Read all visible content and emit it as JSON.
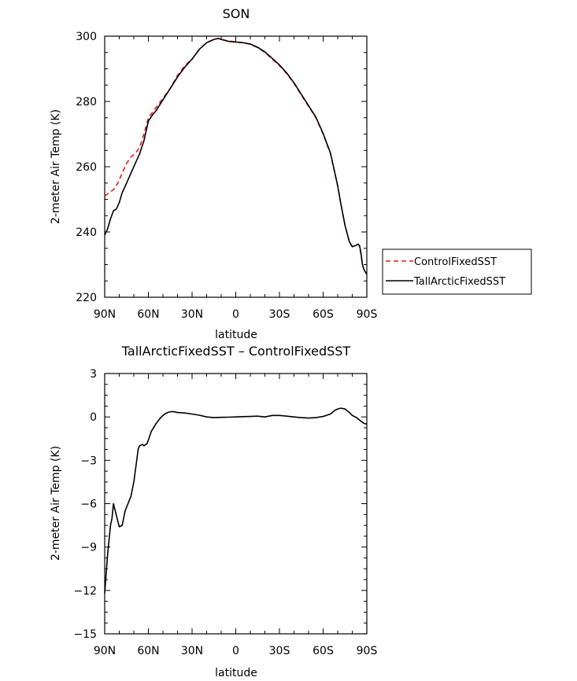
{
  "colors": {
    "control": "#e41a1c",
    "tall": "#000000",
    "diff": "#000000"
  },
  "chart_data": [
    {
      "type": "line",
      "title": "SON",
      "xlabel": "latitude",
      "ylabel": "2-meter Air Temp (K)",
      "xlim": [
        90,
        -90
      ],
      "ylim": [
        220,
        300
      ],
      "x_ticks": [
        90,
        60,
        30,
        0,
        -30,
        -60,
        -90
      ],
      "x_tick_labels": [
        "90N",
        "60N",
        "30N",
        "0",
        "30S",
        "60S",
        "90S"
      ],
      "y_ticks": [
        220,
        240,
        260,
        280,
        300
      ],
      "y_tick_labels": [
        "220",
        "240",
        "260",
        "280",
        "300"
      ],
      "legend": {
        "placement": "right-middle"
      },
      "series": [
        {
          "name": "ControlFixedSST",
          "style": "dashed",
          "color": "#e41a1c",
          "x": [
            90,
            87,
            84,
            81,
            78,
            75,
            72,
            69,
            66,
            63,
            60,
            55,
            50,
            45,
            40,
            35,
            30,
            25,
            20,
            15,
            12,
            10,
            5,
            0,
            -5,
            -10,
            -15,
            -20,
            -25,
            -30,
            -35,
            -40,
            -45,
            -50,
            -55,
            -60,
            -65,
            -70,
            -72,
            -75,
            -78,
            -80,
            -82,
            -84,
            -85,
            -86,
            -87,
            -88,
            -90
          ],
          "y": [
            251,
            252,
            253,
            255,
            258,
            261,
            263,
            264,
            266,
            270,
            275,
            278,
            281,
            284,
            288,
            291,
            293,
            296,
            298,
            299,
            299.3,
            299,
            298.5,
            298.3,
            298.0,
            297.5,
            296.5,
            295,
            293,
            291,
            288.5,
            285.5,
            282,
            278.5,
            275,
            270,
            264,
            254,
            249,
            242,
            237,
            235.5,
            235.8,
            236.3,
            235.6,
            233,
            230,
            228.5,
            227
          ]
        },
        {
          "name": "TallArcticFixedSST",
          "style": "solid",
          "color": "#000000",
          "x": [
            90,
            88,
            86,
            84,
            82,
            80,
            78,
            75,
            72,
            69,
            66,
            63,
            60,
            57,
            55,
            50,
            45,
            40,
            35,
            30,
            25,
            20,
            15,
            12,
            10,
            5,
            0,
            -5,
            -10,
            -15,
            -20,
            -25,
            -30,
            -35,
            -40,
            -45,
            -50,
            -55,
            -60,
            -65,
            -70,
            -72,
            -75,
            -78,
            -80,
            -82,
            -84,
            -85,
            -86,
            -87,
            -88,
            -90
          ],
          "y": [
            239,
            241,
            244,
            246.5,
            247,
            249,
            252,
            255,
            258,
            261,
            264,
            268,
            274,
            276,
            277,
            280.5,
            284,
            287.5,
            290.5,
            293,
            296,
            298,
            299,
            299.3,
            299,
            298.4,
            298.2,
            298,
            297.6,
            296.6,
            295.2,
            293.2,
            291.2,
            288.7,
            285.7,
            282.2,
            278.7,
            275.2,
            270.2,
            264.2,
            254.2,
            249,
            242,
            237,
            235.5,
            235.8,
            236.3,
            235.8,
            233.5,
            230,
            228.5,
            227
          ]
        }
      ]
    },
    {
      "type": "line",
      "title": "TallArcticFixedSST – ControlFixedSST",
      "xlabel": "latitude",
      "ylabel": "2-meter Air Temp (K)",
      "xlim": [
        90,
        -90
      ],
      "ylim": [
        -15,
        3
      ],
      "x_ticks": [
        90,
        60,
        30,
        0,
        -30,
        -60,
        -90
      ],
      "x_tick_labels": [
        "90N",
        "60N",
        "30N",
        "0",
        "30S",
        "60S",
        "90S"
      ],
      "y_ticks": [
        3,
        0,
        -3,
        -6,
        -9,
        -12,
        -15
      ],
      "y_tick_labels": [
        "3",
        "0",
        "−3",
        "−6",
        "−9",
        "−12",
        "−15"
      ],
      "series": [
        {
          "style": "solid",
          "color": "#000000",
          "x": [
            90,
            88,
            86,
            85,
            84,
            82,
            80,
            78,
            77,
            76,
            74,
            72,
            70,
            68,
            67,
            66,
            64,
            63,
            61,
            60,
            58,
            55,
            52,
            50,
            48,
            46,
            44,
            42,
            40,
            35,
            30,
            25,
            20,
            15,
            10,
            5,
            0,
            -5,
            -10,
            -15,
            -20,
            -25,
            -30,
            -35,
            -40,
            -45,
            -50,
            -55,
            -60,
            -65,
            -68,
            -70,
            -72,
            -75,
            -78,
            -80,
            -83,
            -86,
            -88,
            -90
          ],
          "y": [
            -12.2,
            -9.5,
            -7.5,
            -7.0,
            -6.0,
            -6.8,
            -7.6,
            -7.5,
            -7.0,
            -6.5,
            -6.0,
            -5.5,
            -4.5,
            -3.0,
            -2.2,
            -2.0,
            -1.9,
            -2.0,
            -1.85,
            -1.6,
            -1.0,
            -0.5,
            -0.1,
            0.1,
            0.25,
            0.33,
            0.37,
            0.35,
            0.3,
            0.27,
            0.2,
            0.12,
            0.0,
            -0.05,
            -0.03,
            -0.02,
            0.0,
            0.02,
            0.03,
            0.05,
            0.0,
            0.1,
            0.1,
            0.05,
            0.0,
            -0.05,
            -0.08,
            -0.05,
            0.03,
            0.2,
            0.45,
            0.55,
            0.6,
            0.55,
            0.3,
            0.1,
            -0.05,
            -0.3,
            -0.45,
            -0.5
          ]
        }
      ]
    }
  ]
}
